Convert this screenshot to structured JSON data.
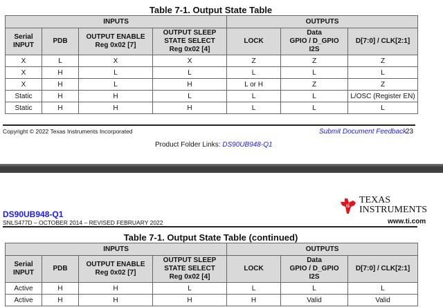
{
  "page_top": {
    "table_title": "Table 7-1. Output State Table",
    "group_headers": [
      "INPUTS",
      "OUTPUTS"
    ],
    "column_headers": [
      "Serial\nINPUT",
      "PDB",
      "OUTPUT ENABLE\nReg 0x02 [7]",
      "OUTPUT SLEEP\nSTATE SELECT\nReg 0x02 [4]",
      "LOCK",
      "Data\nGPIO / D_GPIO\nI2S",
      "D[7:0] / CLK[2:1]"
    ],
    "rows": [
      [
        "X",
        "L",
        "X",
        "X",
        "Z",
        "Z",
        "Z"
      ],
      [
        "X",
        "H",
        "L",
        "L",
        "L",
        "L",
        "L"
      ],
      [
        "X",
        "H",
        "L",
        "H",
        "L or H",
        "Z",
        "Z"
      ],
      [
        "Static",
        "H",
        "H",
        "L",
        "L",
        "L",
        "L/OSC (Register EN)"
      ],
      [
        "Static",
        "H",
        "H",
        "H",
        "L",
        "L",
        "L"
      ]
    ],
    "footer": {
      "copyright": "Copyright © 2022 Texas Instruments Incorporated",
      "feedback_link": "Submit Document Feedback",
      "page_number": "23",
      "product_folder_label": "Product Folder Links:",
      "product_folder_link": "DS90UB948-Q1"
    }
  },
  "page_bottom": {
    "header": {
      "part_number": "DS90UB948-Q1",
      "doc_info": "SNLS477D – OCTOBER 2014 – REVISED FEBRUARY 2022",
      "logo_text_1": "TEXAS",
      "logo_text_2": "INSTRUMENTS",
      "website": "www.ti.com"
    },
    "table_title": "Table 7-1. Output State Table (continued)",
    "rows": [
      [
        "Active",
        "H",
        "H",
        "L",
        "L",
        "L",
        "L"
      ],
      [
        "Active",
        "H",
        "H",
        "H",
        "H",
        "Valid",
        "Valid"
      ]
    ]
  },
  "colors": {
    "link": "#1a1aff",
    "ti_red": "#e4141c",
    "header_fill": "#d9d9d9"
  }
}
